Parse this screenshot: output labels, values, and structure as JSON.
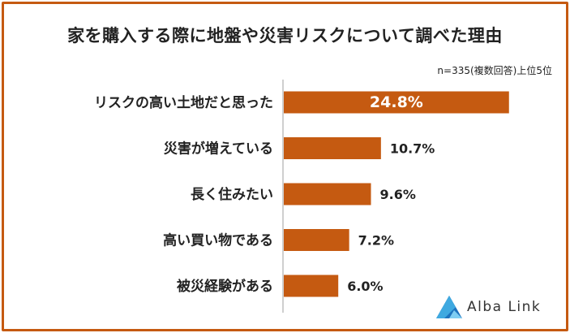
{
  "title": "家を購入する際に地盤や災害リスクについて調べた理由",
  "note": "n=335(複数回答)上位5位",
  "logo": {
    "text": "Alba Link"
  },
  "colors": {
    "bar": "#c55a11",
    "frame": "#c55a11",
    "axis": "#bfbfbf"
  },
  "chart_data": {
    "type": "bar",
    "orientation": "horizontal",
    "categories": [
      "リスクの高い土地だと思った",
      "災害が増えている",
      "長く住みたい",
      "高い買い物である",
      "被災経験がある"
    ],
    "values": [
      24.8,
      10.7,
      9.6,
      7.2,
      6.0
    ],
    "value_labels": [
      "24.8%",
      "10.7%",
      "9.6%",
      "7.2%",
      "6.0%"
    ],
    "unit": "%",
    "xlim": [
      0,
      30
    ]
  }
}
